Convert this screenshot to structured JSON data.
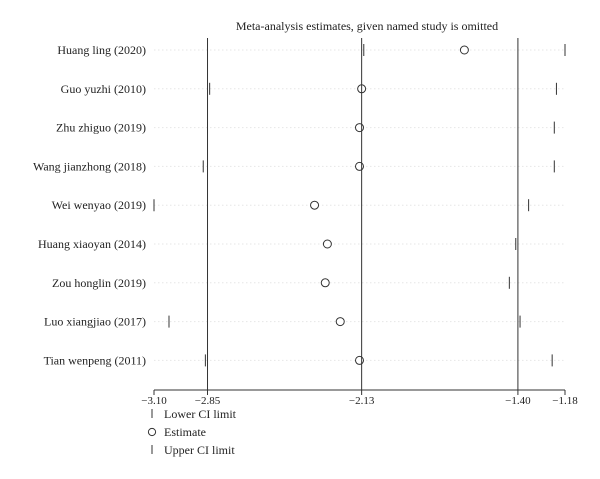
{
  "chart_data": {
    "type": "forest",
    "title": "Meta-analysis estimates, given named study is omitted",
    "xlim": [
      -3.1,
      -1.18
    ],
    "ticks": [
      -3.1,
      -2.85,
      -2.13,
      -1.4,
      -1.18
    ],
    "tick_labels": [
      "−3.10",
      "−2.85",
      "−2.13",
      "−1.40",
      "−1.18"
    ],
    "reference_lines": [
      -2.85,
      -2.13,
      -1.4
    ],
    "studies": [
      {
        "name": "Huang ling (2020)",
        "lower": -2.12,
        "estimate": -1.65,
        "upper": -1.18
      },
      {
        "name": "Guo yuzhi (2010)",
        "lower": -2.84,
        "estimate": -2.13,
        "upper": -1.22
      },
      {
        "name": "Zhu zhiguo (2019)",
        "lower": -2.85,
        "estimate": -2.14,
        "upper": -1.23
      },
      {
        "name": "Wang jianzhong (2018)",
        "lower": -2.87,
        "estimate": -2.14,
        "upper": -1.23
      },
      {
        "name": "Wei wenyao (2019)",
        "lower": -3.1,
        "estimate": -2.35,
        "upper": -1.35
      },
      {
        "name": "Huang xiaoyan (2014)",
        "lower": null,
        "estimate": -2.29,
        "upper": -1.41
      },
      {
        "name": "Zou honglin (2019)",
        "lower": null,
        "estimate": -2.3,
        "upper": -1.44
      },
      {
        "name": "Luo xiangjiao (2017)",
        "lower": -3.03,
        "estimate": -2.23,
        "upper": -1.39
      },
      {
        "name": "Tian wenpeng (2011)",
        "lower": -2.86,
        "estimate": -2.14,
        "upper": -1.24
      }
    ],
    "legend": [
      {
        "symbol": "|",
        "label": "Lower CI limit"
      },
      {
        "symbol": "circle",
        "label": "Estimate"
      },
      {
        "symbol": "|",
        "label": "Upper CI limit"
      }
    ]
  }
}
